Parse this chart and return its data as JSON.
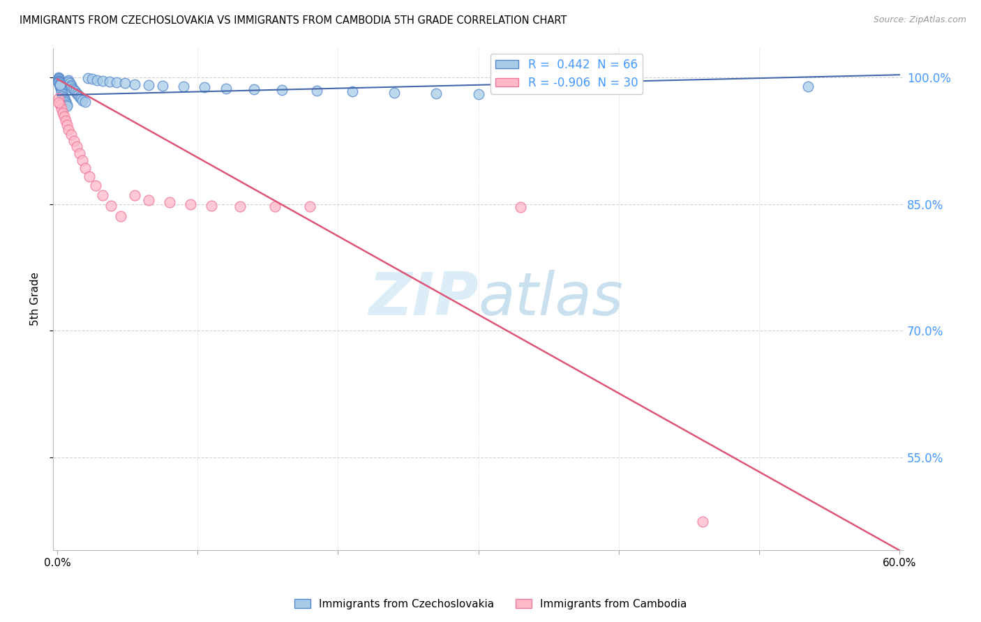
{
  "title": "IMMIGRANTS FROM CZECHOSLOVAKIA VS IMMIGRANTS FROM CAMBODIA 5TH GRADE CORRELATION CHART",
  "source": "Source: ZipAtlas.com",
  "ylabel": "5th Grade",
  "xlim": [
    0.0,
    0.6
  ],
  "ylim": [
    0.44,
    1.035
  ],
  "ytick_vals": [
    0.55,
    0.7,
    0.85,
    1.0
  ],
  "ytick_labels_right": [
    "55.0%",
    "70.0%",
    "85.0%",
    "100.0%"
  ],
  "xtick_vals": [
    0.0,
    0.1,
    0.2,
    0.3,
    0.4,
    0.5,
    0.6
  ],
  "xtick_show": [
    "0.0%",
    "",
    "",
    "",
    "",
    "",
    "60.0%"
  ],
  "legend_r1": "R =  0.442  N = 66",
  "legend_r2": "R = -0.906  N = 30",
  "blue_face": "#A8CCE8",
  "blue_edge": "#5588CC",
  "pink_face": "#FFB8C8",
  "pink_edge": "#EE7799",
  "trend_blue": "#4466AA",
  "trend_pink": "#DD5577",
  "watermark_color": "#DDEEF8",
  "grid_color": "#CCCCCC",
  "right_label_color": "#4499FF",
  "source_color": "#999999",
  "blue_scatter_x": [
    0.001,
    0.001,
    0.001,
    0.001,
    0.001,
    0.002,
    0.002,
    0.002,
    0.002,
    0.003,
    0.003,
    0.003,
    0.004,
    0.004,
    0.005,
    0.005,
    0.006,
    0.006,
    0.007,
    0.007,
    0.008,
    0.008,
    0.009,
    0.01,
    0.01,
    0.011,
    0.012,
    0.013,
    0.014,
    0.015,
    0.016,
    0.017,
    0.018,
    0.02,
    0.022,
    0.025,
    0.028,
    0.032,
    0.037,
    0.042,
    0.048,
    0.055,
    0.065,
    0.075,
    0.09,
    0.105,
    0.12,
    0.14,
    0.16,
    0.185,
    0.21,
    0.24,
    0.27,
    0.3,
    0.001,
    0.001,
    0.001,
    0.001,
    0.001,
    0.001,
    0.001,
    0.002,
    0.002,
    0.002,
    0.33,
    0.535
  ],
  "blue_scatter_y": [
    0.995,
    0.993,
    0.998,
    0.997,
    0.996,
    0.994,
    0.992,
    0.99,
    0.988,
    0.986,
    0.984,
    0.982,
    0.98,
    0.978,
    0.976,
    0.974,
    0.972,
    0.97,
    0.968,
    0.966,
    0.997,
    0.995,
    0.993,
    0.991,
    0.989,
    0.987,
    0.985,
    0.983,
    0.981,
    0.979,
    0.977,
    0.975,
    0.973,
    0.971,
    0.999,
    0.998,
    0.997,
    0.996,
    0.995,
    0.994,
    0.993,
    0.992,
    0.991,
    0.99,
    0.989,
    0.988,
    0.987,
    0.986,
    0.985,
    0.984,
    0.983,
    0.982,
    0.981,
    0.98,
    1.0,
    0.999,
    0.998,
    0.997,
    0.996,
    0.995,
    0.994,
    0.993,
    0.992,
    0.991,
    0.99,
    0.989
  ],
  "pink_scatter_x": [
    0.001,
    0.002,
    0.003,
    0.004,
    0.005,
    0.006,
    0.007,
    0.008,
    0.01,
    0.012,
    0.014,
    0.016,
    0.018,
    0.02,
    0.023,
    0.027,
    0.032,
    0.038,
    0.045,
    0.055,
    0.065,
    0.08,
    0.095,
    0.11,
    0.13,
    0.155,
    0.18,
    0.33,
    0.46,
    0.001
  ],
  "pink_scatter_y": [
    0.975,
    0.968,
    0.963,
    0.958,
    0.954,
    0.949,
    0.944,
    0.938,
    0.932,
    0.925,
    0.918,
    0.91,
    0.902,
    0.893,
    0.883,
    0.872,
    0.86,
    0.848,
    0.836,
    0.86,
    0.855,
    0.852,
    0.85,
    0.848,
    0.847,
    0.847,
    0.847,
    0.846,
    0.474,
    0.97
  ],
  "blue_trend_x": [
    0.0,
    0.6
  ],
  "blue_trend_y": [
    0.979,
    1.003
  ],
  "pink_trend_x": [
    0.0,
    0.6
  ],
  "pink_trend_y": [
    0.998,
    0.44
  ]
}
